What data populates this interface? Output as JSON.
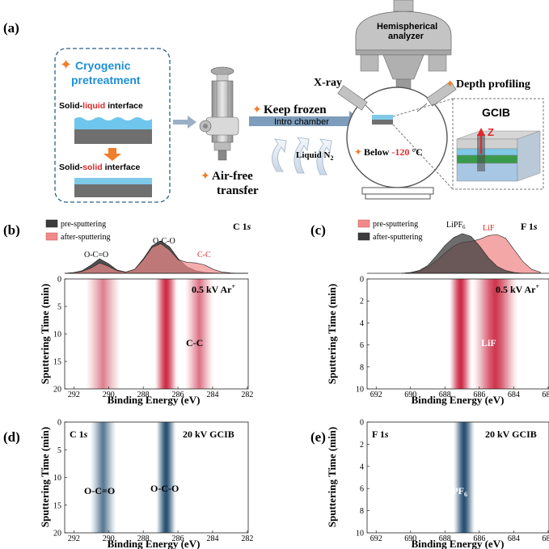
{
  "colors": {
    "blue_title": "#1f8fd6",
    "red": "#e0282a",
    "orange": "#f07d2a",
    "dark_curve": "#3c3c3c",
    "pink_curve": "#ef8a8a",
    "heat_red": "#c8102e",
    "heat_blue": "#0c3b63",
    "gray_device": "#b9b9b9"
  },
  "panel_a": {
    "label": "(a)",
    "cryo_title_1": "Cryogenic",
    "cryo_title_2": "pretreatment",
    "sl_pre": "Solid-",
    "sl_mid": "liquid",
    "sl_post": " interface",
    "ss_pre": "Solid-",
    "ss_mid": "solid",
    "ss_post": " interface",
    "air_free_1": "Air-free",
    "air_free_2": "transfer",
    "keep_frozen": "Keep frozen",
    "intro_chamber": "Intro chamber",
    "liquid_n2": "Liquid N",
    "liquid_n2_sub": "2",
    "xray": "X-ray",
    "analyzer_1": "Hemispherical",
    "analyzer_2": "analyzer",
    "depth_profiling": "Depth profiling",
    "below_pre": "Below ",
    "below_val": "-120",
    "below_unit": " °C",
    "gcib": "GCIB",
    "z": "Z"
  },
  "panel_b": {
    "label": "(b)",
    "element": "C 1",
    "element_orb": "s",
    "legend": [
      "pre-sputtering",
      "after-sputtering"
    ],
    "peak_labels": [
      "O-C=O",
      "O-C-O",
      "C-C"
    ],
    "condition": "0.5 kV Ar",
    "condition_sup": "+",
    "map_label": "C-C",
    "x_ticks": [
      "292",
      "290",
      "288",
      "286",
      "284",
      "282"
    ],
    "y_ticks": [
      "0",
      "5",
      "10",
      "15",
      "20"
    ],
    "xlabel": "Binding Energy (eV)",
    "ylabel": "Sputtering Time (min)"
  },
  "panel_c": {
    "label": "(c)",
    "element": "F 1",
    "element_orb": "s",
    "legend": [
      "pre-sputtering",
      "after-sputtering"
    ],
    "peak_labels": [
      "LiPF",
      "LiF"
    ],
    "peak_label_sub": "6",
    "condition": "0.5 kV Ar",
    "condition_sup": "+",
    "map_label": "LiF",
    "x_ticks": [
      "692",
      "690",
      "688",
      "686",
      "684",
      "682"
    ],
    "y_ticks": [
      "0",
      "2",
      "4",
      "6",
      "8",
      "10"
    ],
    "xlabel": "Binding Energy (eV)",
    "ylabel": "Sputtering Time (min)"
  },
  "panel_d": {
    "label": "(d)",
    "element": "C 1",
    "element_orb": "s",
    "condition": "20 kV GCIB",
    "map_labels": [
      "O-C=O",
      "O-C-O"
    ],
    "x_ticks": [
      "292",
      "290",
      "288",
      "286",
      "284",
      "282"
    ],
    "y_ticks": [
      "0",
      "5",
      "10",
      "15",
      "20"
    ],
    "xlabel": "Binding Energy (eV)",
    "ylabel": "Sputtering Time (min)"
  },
  "panel_e": {
    "label": "(e)",
    "element": "F 1",
    "element_orb": "s",
    "condition": "20 kV GCIB",
    "map_label": "LiPF",
    "map_label_sub": "6",
    "x_ticks": [
      "692",
      "690",
      "688",
      "686",
      "684",
      "682"
    ],
    "y_ticks": [
      "0",
      "2",
      "4",
      "6",
      "8",
      "10"
    ],
    "xlabel": "Binding Energy (eV)",
    "ylabel": "Sputtering Time (min)"
  },
  "chart_data": [
    {
      "type": "area",
      "panel": "b-top",
      "title": "C 1s",
      "x": [
        292.5,
        292,
        291.5,
        291,
        290.5,
        290,
        289.5,
        289,
        288.5,
        288,
        287.5,
        287,
        286.5,
        286,
        285.5,
        285,
        284.5,
        284,
        283.5,
        283,
        282.5,
        282
      ],
      "series": [
        {
          "name": "pre-sputtering",
          "values": [
            0,
            0.02,
            0.08,
            0.25,
            0.45,
            0.3,
            0.1,
            0.04,
            0.12,
            0.45,
            0.85,
            1.0,
            0.82,
            0.45,
            0.2,
            0.08,
            0.03,
            0.01,
            0,
            0,
            0,
            0
          ]
        },
        {
          "name": "after-sputtering",
          "values": [
            0,
            0.02,
            0.06,
            0.16,
            0.32,
            0.22,
            0.08,
            0.04,
            0.12,
            0.42,
            0.8,
            0.92,
            0.72,
            0.42,
            0.34,
            0.32,
            0.26,
            0.12,
            0.04,
            0.01,
            0,
            0
          ]
        }
      ],
      "xlim": [
        292.5,
        282
      ]
    },
    {
      "type": "area",
      "panel": "c-top",
      "title": "F 1s",
      "x": [
        690,
        689.5,
        689,
        688.5,
        688,
        687.5,
        687,
        686.5,
        686,
        685.5,
        685,
        684.5,
        684,
        683.5,
        683,
        682.5,
        682
      ],
      "series": [
        {
          "name": "pre-sputtering",
          "values": [
            0,
            0.02,
            0.06,
            0.16,
            0.32,
            0.52,
            0.7,
            0.8,
            0.82,
            0.88,
            0.97,
            1.0,
            0.9,
            0.6,
            0.3,
            0.1,
            0.03
          ]
        },
        {
          "name": "after-sputtering",
          "values": [
            0,
            0.02,
            0.07,
            0.2,
            0.45,
            0.72,
            0.92,
            1.02,
            0.95,
            0.7,
            0.4,
            0.18,
            0.07,
            0.02,
            0,
            0,
            0
          ]
        }
      ],
      "xlim": [
        692,
        681.5
      ]
    },
    {
      "type": "heatmap",
      "panel": "b-map",
      "xlabel": "Binding Energy (eV)",
      "ylabel": "Sputtering Time (min)",
      "xlim": [
        292.5,
        282
      ],
      "ylim": [
        0,
        20
      ],
      "bands": [
        {
          "center": 290.3,
          "width": 1.2,
          "intensity": 0.25
        },
        {
          "center": 286.7,
          "width": 0.8,
          "intensity": 0.95
        },
        {
          "center": 284.8,
          "width": 1.0,
          "intensity": 0.3
        }
      ]
    },
    {
      "type": "heatmap",
      "panel": "c-map",
      "xlabel": "Binding Energy (eV)",
      "ylabel": "Sputtering Time (min)",
      "xlim": [
        692,
        681.5
      ],
      "ylim": [
        0,
        10
      ],
      "bands": [
        {
          "center": 686.6,
          "width": 0.8,
          "intensity": 1.0
        },
        {
          "center": 684.6,
          "width": 1.6,
          "intensity": 0.8
        }
      ]
    },
    {
      "type": "heatmap",
      "panel": "d-map",
      "xlabel": "Binding Energy (eV)",
      "ylabel": "Sputtering Time (min)",
      "xlim": [
        292.5,
        282
      ],
      "ylim": [
        0,
        20
      ],
      "bands": [
        {
          "center": 290.3,
          "width": 0.9,
          "intensity": 0.45
        },
        {
          "center": 286.7,
          "width": 0.7,
          "intensity": 1.0
        }
      ]
    },
    {
      "type": "heatmap",
      "panel": "e-map",
      "xlabel": "Binding Energy (eV)",
      "ylabel": "Sputtering Time (min)",
      "xlim": [
        692,
        681.5
      ],
      "ylim": [
        0,
        10
      ],
      "bands": [
        {
          "center": 686.4,
          "width": 0.75,
          "intensity": 1.0
        }
      ]
    }
  ]
}
